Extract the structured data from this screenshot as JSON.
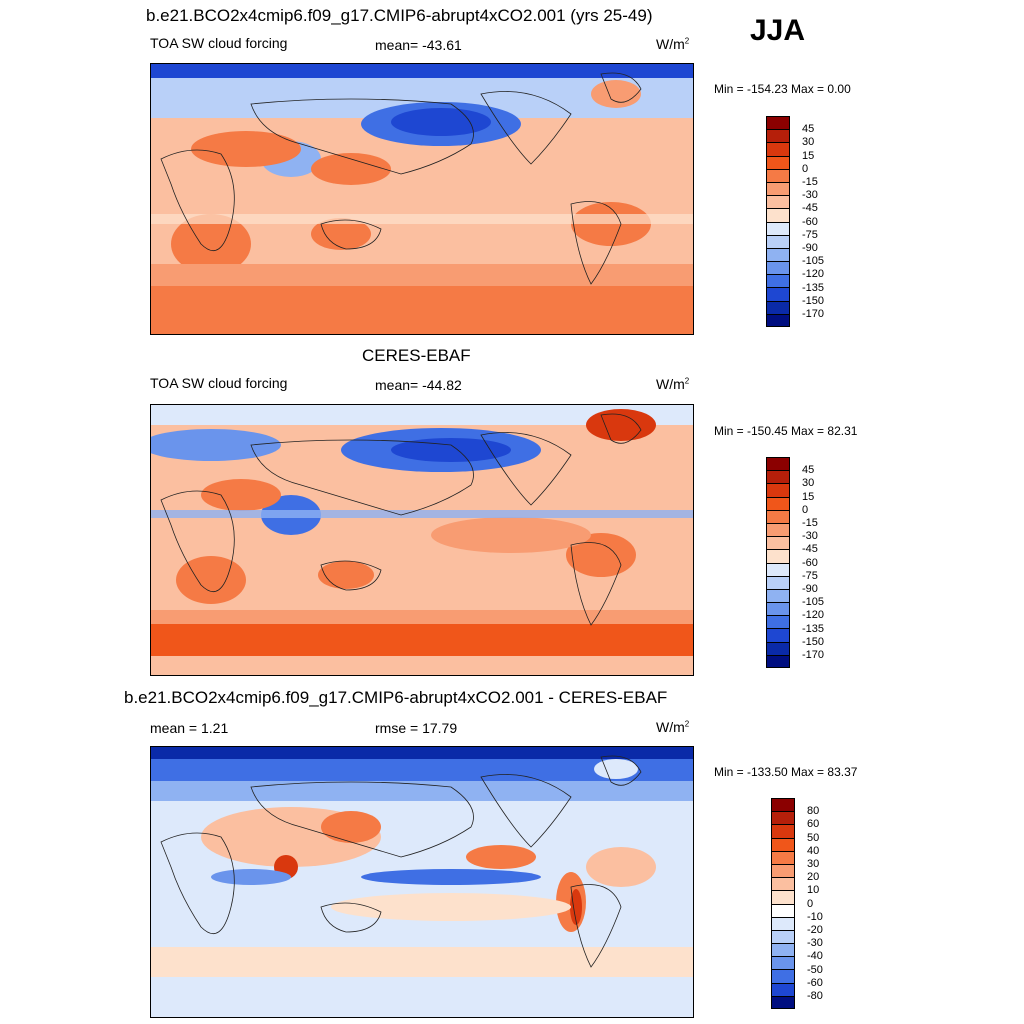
{
  "season": "JJA",
  "panels": [
    {
      "title": "b.e21.BCO2x4cmip6.f09_g17.CMIP6-abrupt4xCO2.001 (yrs 25-49)",
      "left_label": "TOA SW cloud forcing",
      "stat_label": "mean= -43.61",
      "units": "W/m",
      "units_sup": "2",
      "minmax": "Min = -154.23 Max =   0.00"
    },
    {
      "title": "CERES-EBAF",
      "left_label": "TOA SW cloud forcing",
      "stat_label": "mean= -44.82",
      "units": "W/m",
      "units_sup": "2",
      "minmax": "Min = -150.45 Max =  82.31"
    },
    {
      "title": "b.e21.BCO2x4cmip6.f09_g17.CMIP6-abrupt4xCO2.001 - CERES-EBAF",
      "left_label": "mean =   1.21",
      "stat_label": "rmse =  17.79",
      "units": "W/m",
      "units_sup": "2",
      "minmax": "Min = -133.50 Max =  83.37"
    }
  ],
  "colorbars": {
    "main": {
      "labels": [
        "45",
        "30",
        "15",
        "0",
        "-15",
        "-30",
        "-45",
        "-60",
        "-75",
        "-90",
        "-105",
        "-120",
        "-135",
        "-150",
        "-170"
      ],
      "colors": [
        "#8b0000",
        "#b51f0a",
        "#d9380e",
        "#f0561a",
        "#f57a45",
        "#f89c72",
        "#fbbfa0",
        "#fde1cc",
        "#dde9fb",
        "#b9d0f8",
        "#8fb2f2",
        "#6a94ec",
        "#3f6fe4",
        "#1e47d2",
        "#0a2aa8",
        "#000e80"
      ]
    },
    "diff": {
      "labels": [
        "80",
        "60",
        "50",
        "40",
        "30",
        "20",
        "10",
        "0",
        "-10",
        "-20",
        "-30",
        "-40",
        "-50",
        "-60",
        "-80"
      ],
      "colors": [
        "#8b0000",
        "#b51f0a",
        "#d9380e",
        "#f0561a",
        "#f57a45",
        "#f89c72",
        "#fbbfa0",
        "#fde1cc",
        "#ffffff",
        "#dde9fb",
        "#b9d0f8",
        "#8fb2f2",
        "#6a94ec",
        "#3f6fe4",
        "#1e47d2",
        "#000e80"
      ]
    }
  }
}
